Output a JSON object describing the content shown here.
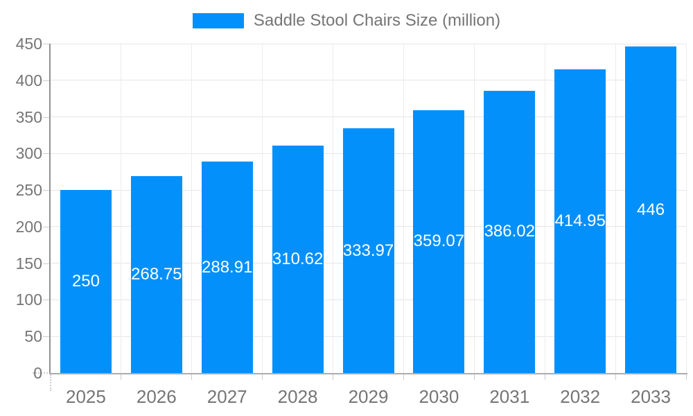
{
  "legend": {
    "items": [
      {
        "label": "Saddle Stool Chairs Size (million)",
        "color": "#0490FB"
      }
    ]
  },
  "chart_data": {
    "type": "bar",
    "title": "Saddle Stool Chairs Size (million)",
    "categories": [
      "2025",
      "2026",
      "2027",
      "2028",
      "2029",
      "2030",
      "2031",
      "2032",
      "2033"
    ],
    "series": [
      {
        "name": "Saddle Stool Chairs Size (million)",
        "values": [
          250,
          268.75,
          288.91,
          310.62,
          333.97,
          359.07,
          386.02,
          414.95,
          446
        ],
        "value_labels": [
          "250",
          "268.75",
          "288.91",
          "310.62",
          "333.97",
          "359.07",
          "386.02",
          "414.95",
          "446"
        ],
        "color": "#0490FB"
      }
    ],
    "xlabel": "",
    "ylabel": "",
    "ylim": [
      0,
      450
    ],
    "yticks": [
      0,
      50,
      100,
      150,
      200,
      250,
      300,
      350,
      400,
      450
    ],
    "grid": true,
    "legend_position": "top",
    "value_label_color": "#ffffff",
    "value_label_position": "center-of-bar"
  },
  "colors": {
    "bar": "#0490FB",
    "axis_text": "#757575",
    "value_text": "#ffffff",
    "y_axis_line": "#919191",
    "x_axis_line": "#ababab",
    "h_gridline": "#e6e6e6",
    "v_gridline": "#ececec",
    "tick": "#cccccc",
    "background": "#ffffff"
  }
}
